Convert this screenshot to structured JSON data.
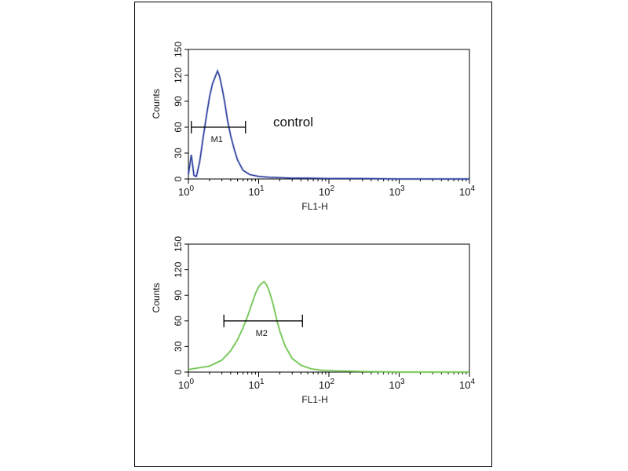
{
  "chart_data": [
    {
      "type": "line",
      "panel": "top",
      "xscale": "log",
      "xlim": [
        1,
        10000
      ],
      "ylim": [
        0,
        150
      ],
      "yticks": [
        0,
        30,
        60,
        90,
        120,
        150
      ],
      "xtick_exponents": [
        "0",
        "1",
        "2",
        "3",
        "4"
      ],
      "xtick_base": "10",
      "xlabel": "FL1-H",
      "ylabel": "Counts",
      "annotation": "control",
      "grid": false,
      "series": [
        {
          "color": "#2b3f9e",
          "x": [
            1.0,
            1.1,
            1.2,
            1.3,
            1.45,
            1.6,
            1.8,
            2.0,
            2.2,
            2.4,
            2.6,
            2.75,
            2.9,
            3.1,
            3.3,
            3.6,
            4.0,
            4.5,
            5.0,
            6.0,
            7.5,
            10,
            14,
            20,
            30,
            50,
            100,
            300,
            1000,
            10000
          ],
          "values": [
            5,
            28,
            4,
            3,
            20,
            45,
            72,
            95,
            110,
            118,
            125,
            120,
            112,
            100,
            88,
            68,
            50,
            34,
            22,
            10,
            5,
            3,
            2,
            1.5,
            1,
            1,
            0.5,
            0.5,
            0,
            0
          ]
        }
      ],
      "markers": [
        {
          "label": "M1",
          "from": 1.1,
          "to": 6.5,
          "y": 60
        }
      ]
    },
    {
      "type": "line",
      "panel": "bottom",
      "xscale": "log",
      "xlim": [
        1,
        10000
      ],
      "ylim": [
        0,
        150
      ],
      "yticks": [
        0,
        30,
        60,
        90,
        120,
        150
      ],
      "xtick_exponents": [
        "0",
        "1",
        "2",
        "3",
        "4"
      ],
      "xtick_base": "10",
      "xlabel": "FL1-H",
      "ylabel": "Counts",
      "grid": false,
      "series": [
        {
          "color": "#6cc24a",
          "x": [
            1.0,
            2.0,
            3.0,
            4.0,
            5.0,
            6.0,
            7.0,
            8.0,
            9.0,
            10,
            11,
            12,
            13,
            14,
            16,
            18,
            20,
            24,
            30,
            40,
            55,
            80,
            120,
            200,
            400,
            1000,
            10000
          ],
          "values": [
            3,
            7,
            14,
            25,
            38,
            52,
            66,
            80,
            92,
            100,
            104,
            106,
            102,
            96,
            80,
            62,
            48,
            30,
            16,
            8,
            4,
            2,
            1.5,
            1,
            0.5,
            0,
            0
          ]
        }
      ],
      "markers": [
        {
          "label": "M2",
          "from": 3.2,
          "to": 42,
          "y": 60
        }
      ]
    }
  ]
}
